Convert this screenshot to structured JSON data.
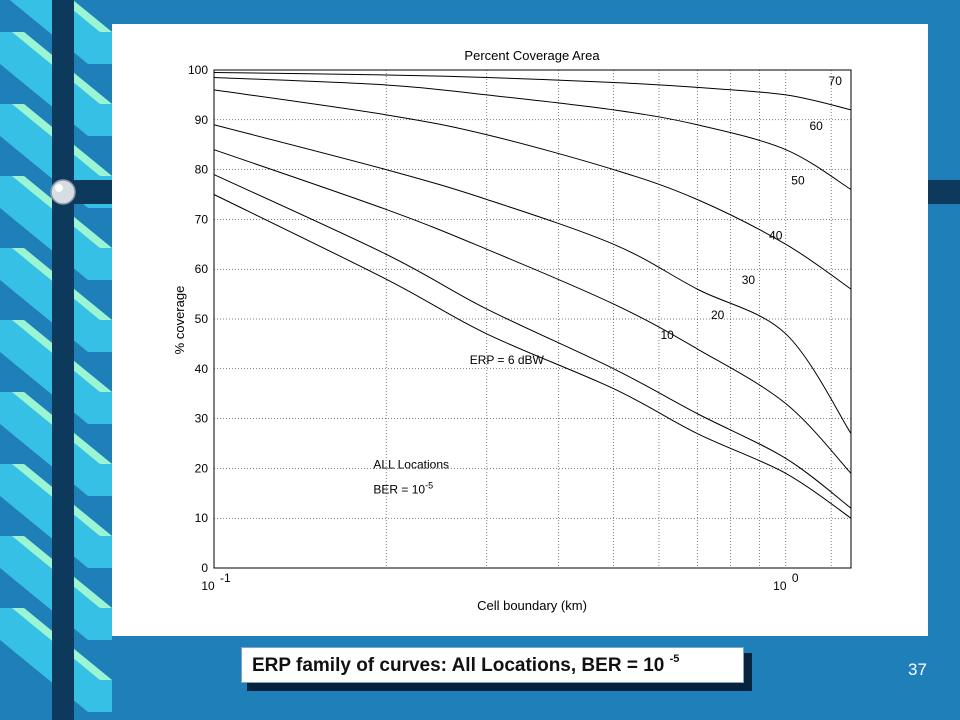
{
  "slide": {
    "caption_text": "ERP family of curves: All Locations, BER = 10",
    "caption_exponent": "-5",
    "slide_number": "37"
  },
  "colors": {
    "background": "#1f7fb8",
    "ribbon_dark": "#0d3a5c",
    "ribbon_light": "#9cf5d2",
    "ribbon_mid": "#36c0e6",
    "panel": "#ffffff"
  },
  "chart_data": {
    "type": "line",
    "title": "Percent Coverage Area",
    "xlabel": "Cell boundary (km)",
    "ylabel": "% coverage",
    "xscale": "log",
    "xlim": [
      0.1,
      1.3
    ],
    "ylim": [
      0,
      100
    ],
    "grid": true,
    "yticks": [
      "0",
      "10",
      "20",
      "30",
      "40",
      "50",
      "60",
      "70",
      "80",
      "90",
      "100"
    ],
    "xtick_labels": [
      {
        "base": "10",
        "exp": "-1",
        "value": 0.1
      },
      {
        "base": "10",
        "exp": "0",
        "value": 1
      }
    ],
    "annotations": [
      {
        "text": "ERP = 6 dBW",
        "x": 0.28,
        "y": 41
      },
      {
        "text": "ALL Locations",
        "x": 0.19,
        "y": 20
      },
      {
        "text": "BER = 10",
        "exp": "-5",
        "x": 0.19,
        "y": 15
      }
    ],
    "series": [
      {
        "name": "10",
        "label_at": {
          "x": 0.62,
          "y": 46
        },
        "x": [
          0.1,
          0.2,
          0.3,
          0.5,
          0.7,
          1.0,
          1.3
        ],
        "y": [
          75,
          58,
          47,
          36,
          27,
          19,
          10
        ]
      },
      {
        "name": "20",
        "label_at": {
          "x": 0.76,
          "y": 50
        },
        "x": [
          0.1,
          0.2,
          0.3,
          0.5,
          0.7,
          1.0,
          1.3
        ],
        "y": [
          79,
          63,
          52,
          40,
          31,
          22,
          12
        ]
      },
      {
        "name": "30",
        "label_at": {
          "x": 0.86,
          "y": 57
        },
        "x": [
          0.1,
          0.2,
          0.3,
          0.5,
          0.7,
          1.0,
          1.3
        ],
        "y": [
          84,
          72,
          64,
          53,
          44,
          33,
          19
        ]
      },
      {
        "name": "40",
        "label_at": {
          "x": 0.96,
          "y": 66
        },
        "x": [
          0.1,
          0.2,
          0.3,
          0.5,
          0.7,
          1.0,
          1.3
        ],
        "y": [
          89,
          80,
          74,
          65,
          56,
          47,
          27
        ]
      },
      {
        "name": "50",
        "label_at": {
          "x": 1.05,
          "y": 77
        },
        "x": [
          0.1,
          0.2,
          0.3,
          0.5,
          0.7,
          1.0,
          1.3
        ],
        "y": [
          96,
          91,
          87,
          80,
          74,
          65,
          56
        ]
      },
      {
        "name": "60",
        "label_at": {
          "x": 1.13,
          "y": 88
        },
        "x": [
          0.1,
          0.2,
          0.3,
          0.5,
          0.7,
          1.0,
          1.3
        ],
        "y": [
          98.5,
          97,
          95,
          92,
          89,
          84,
          76
        ]
      },
      {
        "name": "70",
        "label_at": {
          "x": 1.22,
          "y": 97
        },
        "x": [
          0.1,
          0.2,
          0.3,
          0.5,
          0.7,
          1.0,
          1.3
        ],
        "y": [
          99.5,
          99,
          98.5,
          97.5,
          96.5,
          95,
          92
        ]
      }
    ]
  }
}
